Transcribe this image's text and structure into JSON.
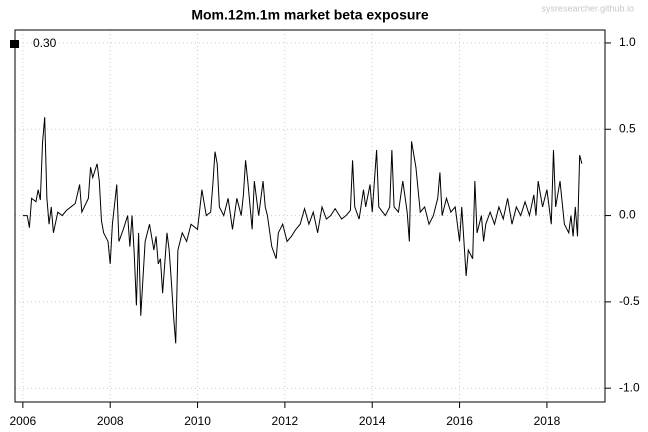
{
  "chart_data": {
    "type": "line",
    "title": "Mom.12m.1m market beta exposure",
    "watermark": "sysresearcher.github.io",
    "xlim": [
      2005.82,
      2019.33
    ],
    "ylim": [
      -1.08,
      1.075
    ],
    "xticks": [
      2006,
      2008,
      2010,
      2012,
      2014,
      2016,
      2018
    ],
    "yticks": [
      {
        "value": -1,
        "label": "-1.0"
      },
      {
        "value": -0.5,
        "label": "-0.5"
      },
      {
        "value": 0,
        "label": "0.0"
      },
      {
        "value": 0.5,
        "label": "0.5"
      },
      {
        "value": 1,
        "label": "1.0"
      }
    ],
    "grid": true,
    "legend": "top-left",
    "x": [
      2006.0,
      2006.1,
      2006.15,
      2006.2,
      2006.3,
      2006.35,
      2006.4,
      2006.45,
      2006.5,
      2006.55,
      2006.6,
      2006.65,
      2006.7,
      2006.8,
      2006.9,
      2007.0,
      2007.1,
      2007.2,
      2007.3,
      2007.35,
      2007.5,
      2007.55,
      2007.6,
      2007.7,
      2007.75,
      2007.8,
      2007.85,
      2007.95,
      2008.0,
      2008.05,
      2008.15,
      2008.2,
      2008.3,
      2008.4,
      2008.45,
      2008.5,
      2008.55,
      2008.6,
      2008.65,
      2008.7,
      2008.8,
      2008.9,
      2009.0,
      2009.05,
      2009.1,
      2009.15,
      2009.2,
      2009.3,
      2009.35,
      2009.4,
      2009.45,
      2009.5,
      2009.55,
      2009.65,
      2009.75,
      2009.85,
      2010.0,
      2010.1,
      2010.2,
      2010.3,
      2010.35,
      2010.4,
      2010.45,
      2010.5,
      2010.6,
      2010.7,
      2010.8,
      2010.9,
      2011.0,
      2011.05,
      2011.1,
      2011.15,
      2011.25,
      2011.3,
      2011.4,
      2011.5,
      2011.55,
      2011.6,
      2011.7,
      2011.8,
      2011.85,
      2011.95,
      2012.05,
      2012.15,
      2012.25,
      2012.35,
      2012.45,
      2012.55,
      2012.65,
      2012.75,
      2012.85,
      2012.95,
      2013.05,
      2013.15,
      2013.3,
      2013.4,
      2013.5,
      2013.55,
      2013.6,
      2013.7,
      2013.8,
      2013.85,
      2013.95,
      2014.0,
      2014.1,
      2014.15,
      2014.3,
      2014.4,
      2014.45,
      2014.5,
      2014.6,
      2014.7,
      2014.8,
      2014.85,
      2014.9,
      2015.0,
      2015.1,
      2015.2,
      2015.3,
      2015.4,
      2015.5,
      2015.55,
      2015.6,
      2015.7,
      2015.8,
      2015.9,
      2016.0,
      2016.05,
      2016.15,
      2016.2,
      2016.3,
      2016.35,
      2016.4,
      2016.5,
      2016.55,
      2016.6,
      2016.7,
      2016.8,
      2016.9,
      2017.0,
      2017.1,
      2017.2,
      2017.3,
      2017.4,
      2017.5,
      2017.6,
      2017.7,
      2017.75,
      2017.8,
      2017.9,
      2018.0,
      2018.1,
      2018.15,
      2018.2,
      2018.3,
      2018.4,
      2018.5,
      2018.55,
      2018.6,
      2018.65,
      2018.7,
      2018.75,
      2018.8
    ],
    "series": [
      {
        "name": "0.30",
        "color": "#000000",
        "values": [
          0.0,
          0.0,
          -0.07,
          0.1,
          0.08,
          0.15,
          0.09,
          0.42,
          0.57,
          0.1,
          -0.05,
          0.05,
          -0.1,
          0.02,
          0.0,
          0.03,
          0.05,
          0.07,
          0.18,
          0.02,
          0.1,
          0.28,
          0.22,
          0.3,
          0.2,
          -0.03,
          -0.1,
          -0.15,
          -0.28,
          -0.05,
          0.18,
          -0.15,
          -0.08,
          0.0,
          -0.18,
          0.0,
          -0.22,
          -0.52,
          -0.1,
          -0.58,
          -0.15,
          -0.05,
          -0.2,
          -0.12,
          -0.28,
          -0.25,
          -0.45,
          -0.1,
          -0.2,
          -0.38,
          -0.58,
          -0.74,
          -0.2,
          -0.1,
          -0.15,
          -0.05,
          -0.08,
          0.15,
          0.0,
          0.02,
          0.18,
          0.37,
          0.3,
          0.05,
          0.0,
          0.1,
          -0.08,
          0.1,
          0.0,
          0.12,
          0.32,
          0.2,
          -0.08,
          0.2,
          0.0,
          0.2,
          0.05,
          0.0,
          -0.18,
          -0.25,
          -0.1,
          -0.05,
          -0.15,
          -0.12,
          -0.08,
          -0.05,
          0.04,
          -0.05,
          0.02,
          -0.1,
          0.05,
          -0.02,
          0.0,
          0.04,
          -0.02,
          0.0,
          0.03,
          0.32,
          0.05,
          -0.02,
          0.15,
          0.05,
          0.18,
          0.02,
          0.38,
          0.05,
          0.0,
          0.05,
          0.38,
          0.05,
          0.02,
          0.2,
          0.02,
          -0.15,
          0.43,
          0.28,
          0.02,
          0.05,
          -0.05,
          0.0,
          0.1,
          0.25,
          0.0,
          0.1,
          0.02,
          0.05,
          -0.15,
          0.05,
          -0.35,
          -0.2,
          -0.25,
          0.2,
          -0.1,
          0.0,
          -0.15,
          -0.05,
          0.02,
          -0.05,
          0.05,
          -0.02,
          0.1,
          -0.05,
          0.05,
          0.0,
          0.08,
          0.0,
          0.12,
          0.0,
          0.2,
          0.05,
          0.15,
          -0.05,
          0.38,
          0.05,
          0.2,
          -0.05,
          -0.1,
          0.0,
          -0.12,
          0.05,
          -0.12,
          0.35,
          0.3
        ]
      }
    ]
  }
}
